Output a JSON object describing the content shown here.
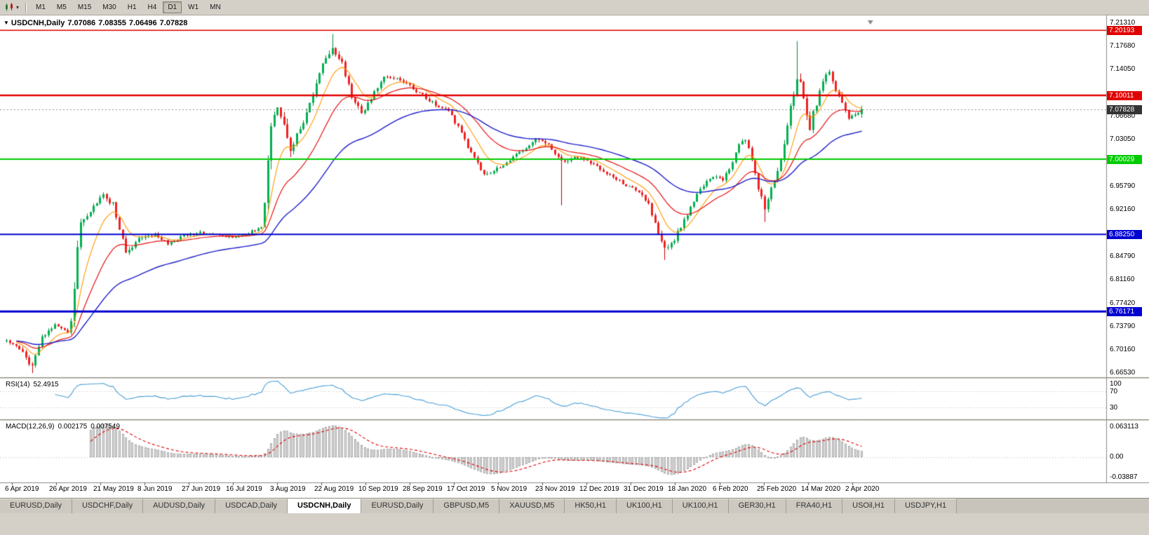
{
  "toolbar": {
    "timeframes": [
      "M1",
      "M5",
      "M15",
      "M30",
      "H1",
      "H4",
      "D1",
      "W1",
      "MN"
    ],
    "active_timeframe": "D1"
  },
  "icons": {
    "collapse_triangle": "▼",
    "toolbar_caret": "▾"
  },
  "chart": {
    "title": {
      "symbol": "USDCNH,Daily",
      "open": "7.07086",
      "high": "7.08355",
      "low": "7.06496",
      "close": "7.07828"
    },
    "price_axis": {
      "ticks": [
        "7.21310",
        "7.17680",
        "7.14050",
        "7.06680",
        "7.03050",
        "6.99420",
        "6.95790",
        "6.92160",
        "6.84790",
        "6.81160",
        "6.77420",
        "6.73790",
        "6.70160",
        "6.66530"
      ]
    },
    "current_price": {
      "label": "7.07828",
      "value": 7.07828,
      "badge_color": "#333333"
    }
  },
  "rsi": {
    "label": "RSI(14)",
    "value": "52.4915",
    "color": "#4a9ed6",
    "axis": [
      {
        "label": "100",
        "value": 100
      },
      {
        "label": "70",
        "value": 70
      },
      {
        "label": "30",
        "value": 30
      }
    ]
  },
  "macd": {
    "label": "MACD(12,26,9)",
    "main_value": "0.002175",
    "signal_value": "0.007549",
    "axis": {
      "top": "0.063113",
      "zero": "0.00",
      "bottom": "-0.03887"
    }
  },
  "tabs": {
    "active_index": 4,
    "labels": [
      "EURUSD,Daily",
      "USDCHF,Daily",
      "AUDUSD,Daily",
      "USDCAD,Daily",
      "USDCNH,Daily",
      "EURUSD,Daily",
      "GBPUSD,M5",
      "XAUUSD,M5",
      "HK50,H1",
      "UK100,H1",
      "UK100,H1",
      "GER30,H1",
      "FRA40,H1",
      "USOil,H1",
      "USDJPY,H1"
    ]
  },
  "colors": {
    "candle_up": "#00b050",
    "candle_up_wick": "#008a3c",
    "candle_down": "#f22020",
    "candle_down_wick": "#c00000",
    "ma_fast": "#ff9900",
    "ma_mid": "#e81010",
    "ma_slow": "#2020cc",
    "macd_hist_fill": "#e6e6e6",
    "macd_hist_stroke": "#979797",
    "macd_signal": "#e00000",
    "level_dotted": "#b8b8b8",
    "separator": "#8e8a82"
  },
  "chart_data": {
    "type": "candlestick",
    "symbol": "USDCNH",
    "timeframe": "Daily",
    "bars": 266,
    "last_bar": {
      "open": 7.07086,
      "high": 7.08355,
      "low": 7.06496,
      "close": 7.07828
    },
    "visible_range": {
      "price_max": 7.2186,
      "price_min": 6.6588
    },
    "x_dates": [
      "6 Apr 2019",
      "26 Apr 2019",
      "21 May 2019",
      "8 Jun 2019",
      "27 Jun 2019",
      "16 Jul 2019",
      "3 Aug 2019",
      "22 Aug 2019",
      "10 Sep 2019",
      "28 Sep 2019",
      "17 Oct 2019",
      "5 Nov 2019",
      "23 Nov 2019",
      "12 Dec 2019",
      "31 Dec 2019",
      "18 Jan 2020",
      "6 Feb 2020",
      "25 Feb 2020",
      "14 Mar 2020",
      "2 Apr 2020"
    ],
    "horizontal_lines": [
      {
        "label": "7.20193",
        "price": 7.20193,
        "color": "#e00000",
        "width": 1.5
      },
      {
        "label": "7.10011",
        "price": 7.10011,
        "color": "#e00000",
        "width": 2.5
      },
      {
        "label": "7.00029",
        "price": 7.00029,
        "color": "#00cc00",
        "width": 2
      },
      {
        "label": "6.88250",
        "price": 6.8825,
        "color": "#0000d0",
        "width": 2
      },
      {
        "label": "6.76171",
        "price": 6.76171,
        "color": "#0000d0",
        "width": 3
      }
    ],
    "current_price": 7.07828,
    "price_path_anchors": [
      [
        0,
        6.715,
        0.012
      ],
      [
        4,
        6.702,
        0.014
      ],
      [
        8,
        6.676,
        0.016
      ],
      [
        11,
        6.72,
        0.012
      ],
      [
        15,
        6.742,
        0.01
      ],
      [
        19,
        6.728,
        0.009
      ],
      [
        20,
        6.745,
        0.015
      ],
      [
        21,
        6.8,
        0.03
      ],
      [
        22,
        6.862,
        0.03
      ],
      [
        23,
        6.9,
        0.022
      ],
      [
        26,
        6.92,
        0.015
      ],
      [
        30,
        6.943,
        0.015
      ],
      [
        33,
        6.93,
        0.013
      ],
      [
        37,
        6.855,
        0.016
      ],
      [
        41,
        6.875,
        0.011
      ],
      [
        46,
        6.882,
        0.009
      ],
      [
        50,
        6.868,
        0.009
      ],
      [
        55,
        6.88,
        0.008
      ],
      [
        60,
        6.885,
        0.008
      ],
      [
        65,
        6.882,
        0.007
      ],
      [
        70,
        6.878,
        0.007
      ],
      [
        75,
        6.885,
        0.008
      ],
      [
        79,
        6.892,
        0.01
      ],
      [
        80,
        6.93,
        0.03
      ],
      [
        81,
        7.0,
        0.045
      ],
      [
        82,
        7.05,
        0.04
      ],
      [
        84,
        7.085,
        0.03
      ],
      [
        86,
        7.06,
        0.025
      ],
      [
        88,
        7.01,
        0.03
      ],
      [
        90,
        7.04,
        0.022
      ],
      [
        93,
        7.07,
        0.018
      ],
      [
        96,
        7.12,
        0.018
      ],
      [
        99,
        7.16,
        0.018
      ],
      [
        101,
        7.175,
        0.016
      ],
      [
        104,
        7.15,
        0.015
      ],
      [
        107,
        7.1,
        0.016
      ],
      [
        110,
        7.07,
        0.015
      ],
      [
        113,
        7.095,
        0.013
      ],
      [
        117,
        7.13,
        0.012
      ],
      [
        121,
        7.125,
        0.011
      ],
      [
        125,
        7.115,
        0.011
      ],
      [
        129,
        7.1,
        0.01
      ],
      [
        133,
        7.085,
        0.01
      ],
      [
        137,
        7.075,
        0.01
      ],
      [
        140,
        7.05,
        0.011
      ],
      [
        144,
        7.01,
        0.012
      ],
      [
        148,
        6.975,
        0.012
      ],
      [
        152,
        6.985,
        0.01
      ],
      [
        156,
        7.0,
        0.01
      ],
      [
        160,
        7.015,
        0.01
      ],
      [
        164,
        7.03,
        0.011
      ],
      [
        167,
        7.025,
        0.018
      ],
      [
        170,
        7.01,
        0.012
      ],
      [
        173,
        6.995,
        0.014
      ],
      [
        176,
        7.005,
        0.01
      ],
      [
        180,
        6.998,
        0.009
      ],
      [
        184,
        6.985,
        0.009
      ],
      [
        188,
        6.972,
        0.009
      ],
      [
        192,
        6.96,
        0.009
      ],
      [
        196,
        6.95,
        0.01
      ],
      [
        199,
        6.93,
        0.012
      ],
      [
        202,
        6.885,
        0.016
      ],
      [
        204,
        6.858,
        0.016
      ],
      [
        207,
        6.875,
        0.013
      ],
      [
        210,
        6.905,
        0.013
      ],
      [
        213,
        6.935,
        0.012
      ],
      [
        216,
        6.96,
        0.011
      ],
      [
        219,
        6.972,
        0.01
      ],
      [
        222,
        6.968,
        0.011
      ],
      [
        225,
        6.995,
        0.012
      ],
      [
        227,
        7.025,
        0.013
      ],
      [
        229,
        7.03,
        0.013
      ],
      [
        231,
        7.0,
        0.014
      ],
      [
        233,
        6.955,
        0.016
      ],
      [
        235,
        6.925,
        0.016
      ],
      [
        237,
        6.955,
        0.015
      ],
      [
        239,
        6.985,
        0.016
      ],
      [
        241,
        7.02,
        0.02
      ],
      [
        243,
        7.08,
        0.03
      ],
      [
        245,
        7.13,
        0.032
      ],
      [
        247,
        7.1,
        0.03
      ],
      [
        249,
        7.05,
        0.028
      ],
      [
        251,
        7.09,
        0.024
      ],
      [
        253,
        7.125,
        0.02
      ],
      [
        255,
        7.135,
        0.018
      ],
      [
        257,
        7.11,
        0.016
      ],
      [
        259,
        7.085,
        0.014
      ],
      [
        261,
        7.065,
        0.012
      ],
      [
        263,
        7.07,
        0.01
      ],
      [
        265,
        7.07828,
        0.009
      ]
    ],
    "forced_extremes": [
      {
        "i": 8,
        "low": 6.6653
      },
      {
        "i": 21,
        "low": 6.737
      },
      {
        "i": 101,
        "high": 7.196
      },
      {
        "i": 172,
        "low": 6.928
      },
      {
        "i": 204,
        "low": 6.8425
      },
      {
        "i": 235,
        "low": 6.902
      },
      {
        "i": 245,
        "high": 7.185
      }
    ],
    "moving_averages": [
      {
        "name": "fast",
        "period": 9,
        "color": "#ff9900"
      },
      {
        "name": "mid",
        "period": 22,
        "color": "#e81010"
      },
      {
        "name": "slow",
        "period": 50,
        "color": "#2020cc"
      }
    ],
    "rsi": {
      "period": 14,
      "current": 52.4915,
      "levels": [
        70,
        30
      ],
      "range": [
        0,
        100
      ]
    },
    "macd": {
      "fast": 12,
      "slow": 26,
      "signal": 9,
      "current_main": 0.002175,
      "current_signal": 0.007549,
      "axis_top": 0.063113,
      "axis_bottom": -0.03887
    }
  }
}
